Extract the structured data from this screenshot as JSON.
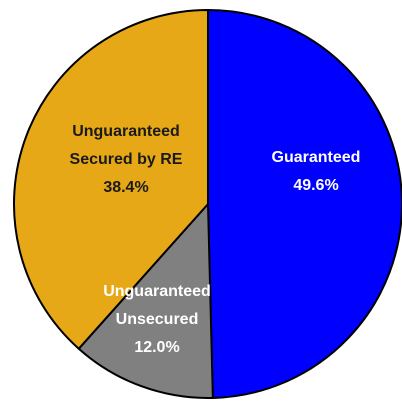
{
  "chart_data": {
    "type": "pie",
    "categories": [
      [
        "Guaranteed"
      ],
      [
        "Unguaranteed",
        "Unsecured"
      ],
      [
        "Unguaranteed",
        "Secured by RE"
      ]
    ],
    "values": [
      49.6,
      12.0,
      38.4
    ],
    "value_labels": [
      "49.6%",
      "12.0%",
      "38.4%"
    ],
    "colors": [
      "#0000ff",
      "#808080",
      "#e6a817"
    ],
    "label_colors": [
      "#ffffff",
      "#ffffff",
      "#1a1a1a"
    ]
  }
}
